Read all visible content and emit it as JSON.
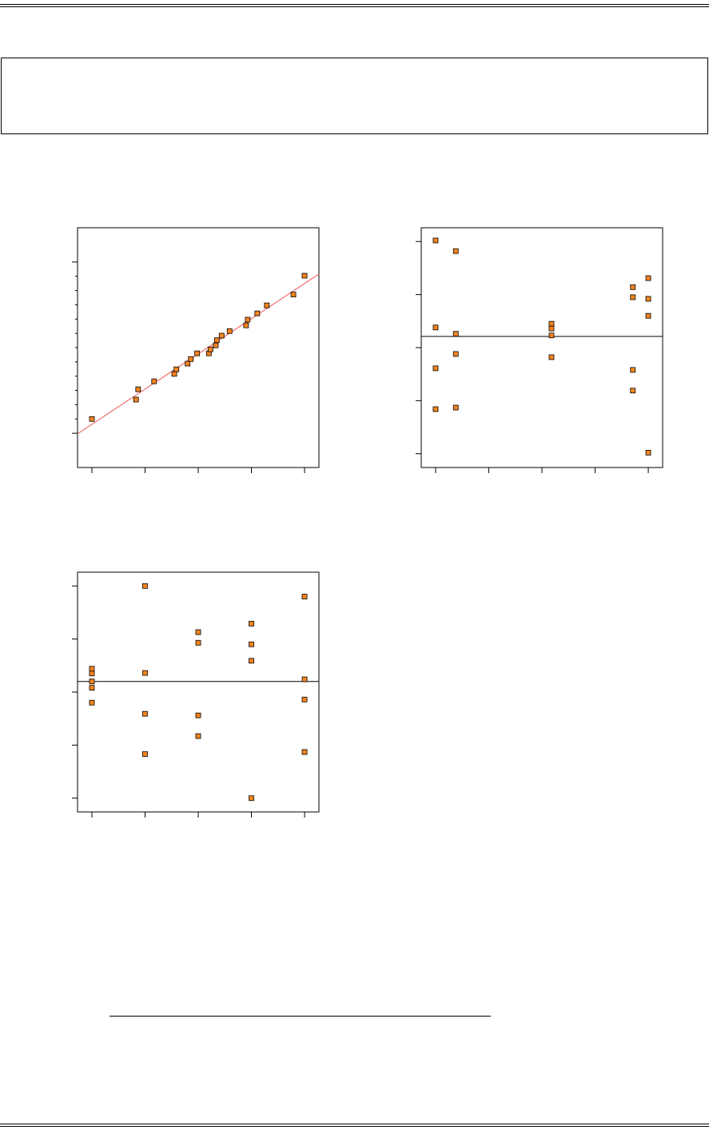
{
  "chart_data": [
    {
      "type": "scatter",
      "color": "#f5841f",
      "x": [
        -2.0,
        -1.17,
        -1.13,
        -0.83,
        -0.45,
        -0.41,
        -0.2,
        -0.14,
        -0.02,
        0.2,
        0.23,
        0.33,
        0.35,
        0.44,
        0.59,
        0.9,
        0.93,
        1.11,
        1.29,
        1.79,
        2.0
      ],
      "values": [
        -1.25,
        -0.91,
        -0.73,
        -0.59,
        -0.46,
        -0.38,
        -0.28,
        -0.2,
        -0.1,
        -0.1,
        -0.03,
        0.04,
        0.13,
        0.21,
        0.29,
        0.39,
        0.49,
        0.6,
        0.74,
        0.93,
        1.26
      ],
      "line": {
        "x": [
          -2.27,
          2.27
        ],
        "values": [
          -1.51,
          1.29
        ],
        "color": "#f07070"
      },
      "xlim": [
        -2.27,
        2.27
      ],
      "xticks": [
        -2,
        -1,
        0,
        1,
        2
      ],
      "ylim": [
        -2.1,
        2.1
      ],
      "yticks": [
        -1.5,
        -1.25,
        -1,
        -0.75,
        -0.5,
        -0.25,
        0,
        0.25,
        0.5,
        0.75,
        1,
        1.25,
        1.5
      ]
    },
    {
      "type": "scatter",
      "color": "#f5841f",
      "x": [
        1,
        1,
        1,
        1,
        1.38,
        1.38,
        1.38,
        1.38,
        3.18,
        3.18,
        3.18,
        3.18,
        4.71,
        4.71,
        4.71,
        4.71,
        5,
        5,
        5,
        5
      ],
      "values": [
        2.02,
        0.38,
        -0.39,
        -1.16,
        1.82,
        0.26,
        -0.12,
        -1.13,
        0.45,
        0.36,
        0.23,
        -0.18,
        1.14,
        0.95,
        -0.42,
        -0.81,
        1.31,
        0.92,
        0.6,
        -1.98
      ],
      "hline": 0.21,
      "xlim": [
        0.73,
        5.27
      ],
      "xticks": [
        1,
        2,
        3,
        4,
        5
      ],
      "ylim": [
        -2.26,
        2.26
      ],
      "yticks": [
        -2,
        -1,
        0,
        1,
        2
      ]
    },
    {
      "type": "scatter",
      "color": "#f5841f",
      "x": [
        1,
        1,
        1,
        1,
        1,
        2,
        2,
        2,
        2,
        3,
        3,
        3,
        3,
        4,
        4,
        4,
        4,
        5,
        5,
        5,
        5
      ],
      "values": [
        0.44,
        0.35,
        0.2,
        0.08,
        -0.2,
        2.0,
        0.36,
        -0.41,
        -1.17,
        1.13,
        0.93,
        -0.44,
        -0.83,
        1.29,
        0.9,
        0.59,
        -2.0,
        1.8,
        0.24,
        -0.14,
        -1.13
      ],
      "hline": 0.2,
      "xlim": [
        0.73,
        5.27
      ],
      "xticks": [
        1,
        2,
        3,
        4,
        5
      ],
      "ylim": [
        -2.26,
        2.26
      ],
      "yticks": [
        -2,
        -1,
        0,
        1,
        2
      ]
    }
  ]
}
